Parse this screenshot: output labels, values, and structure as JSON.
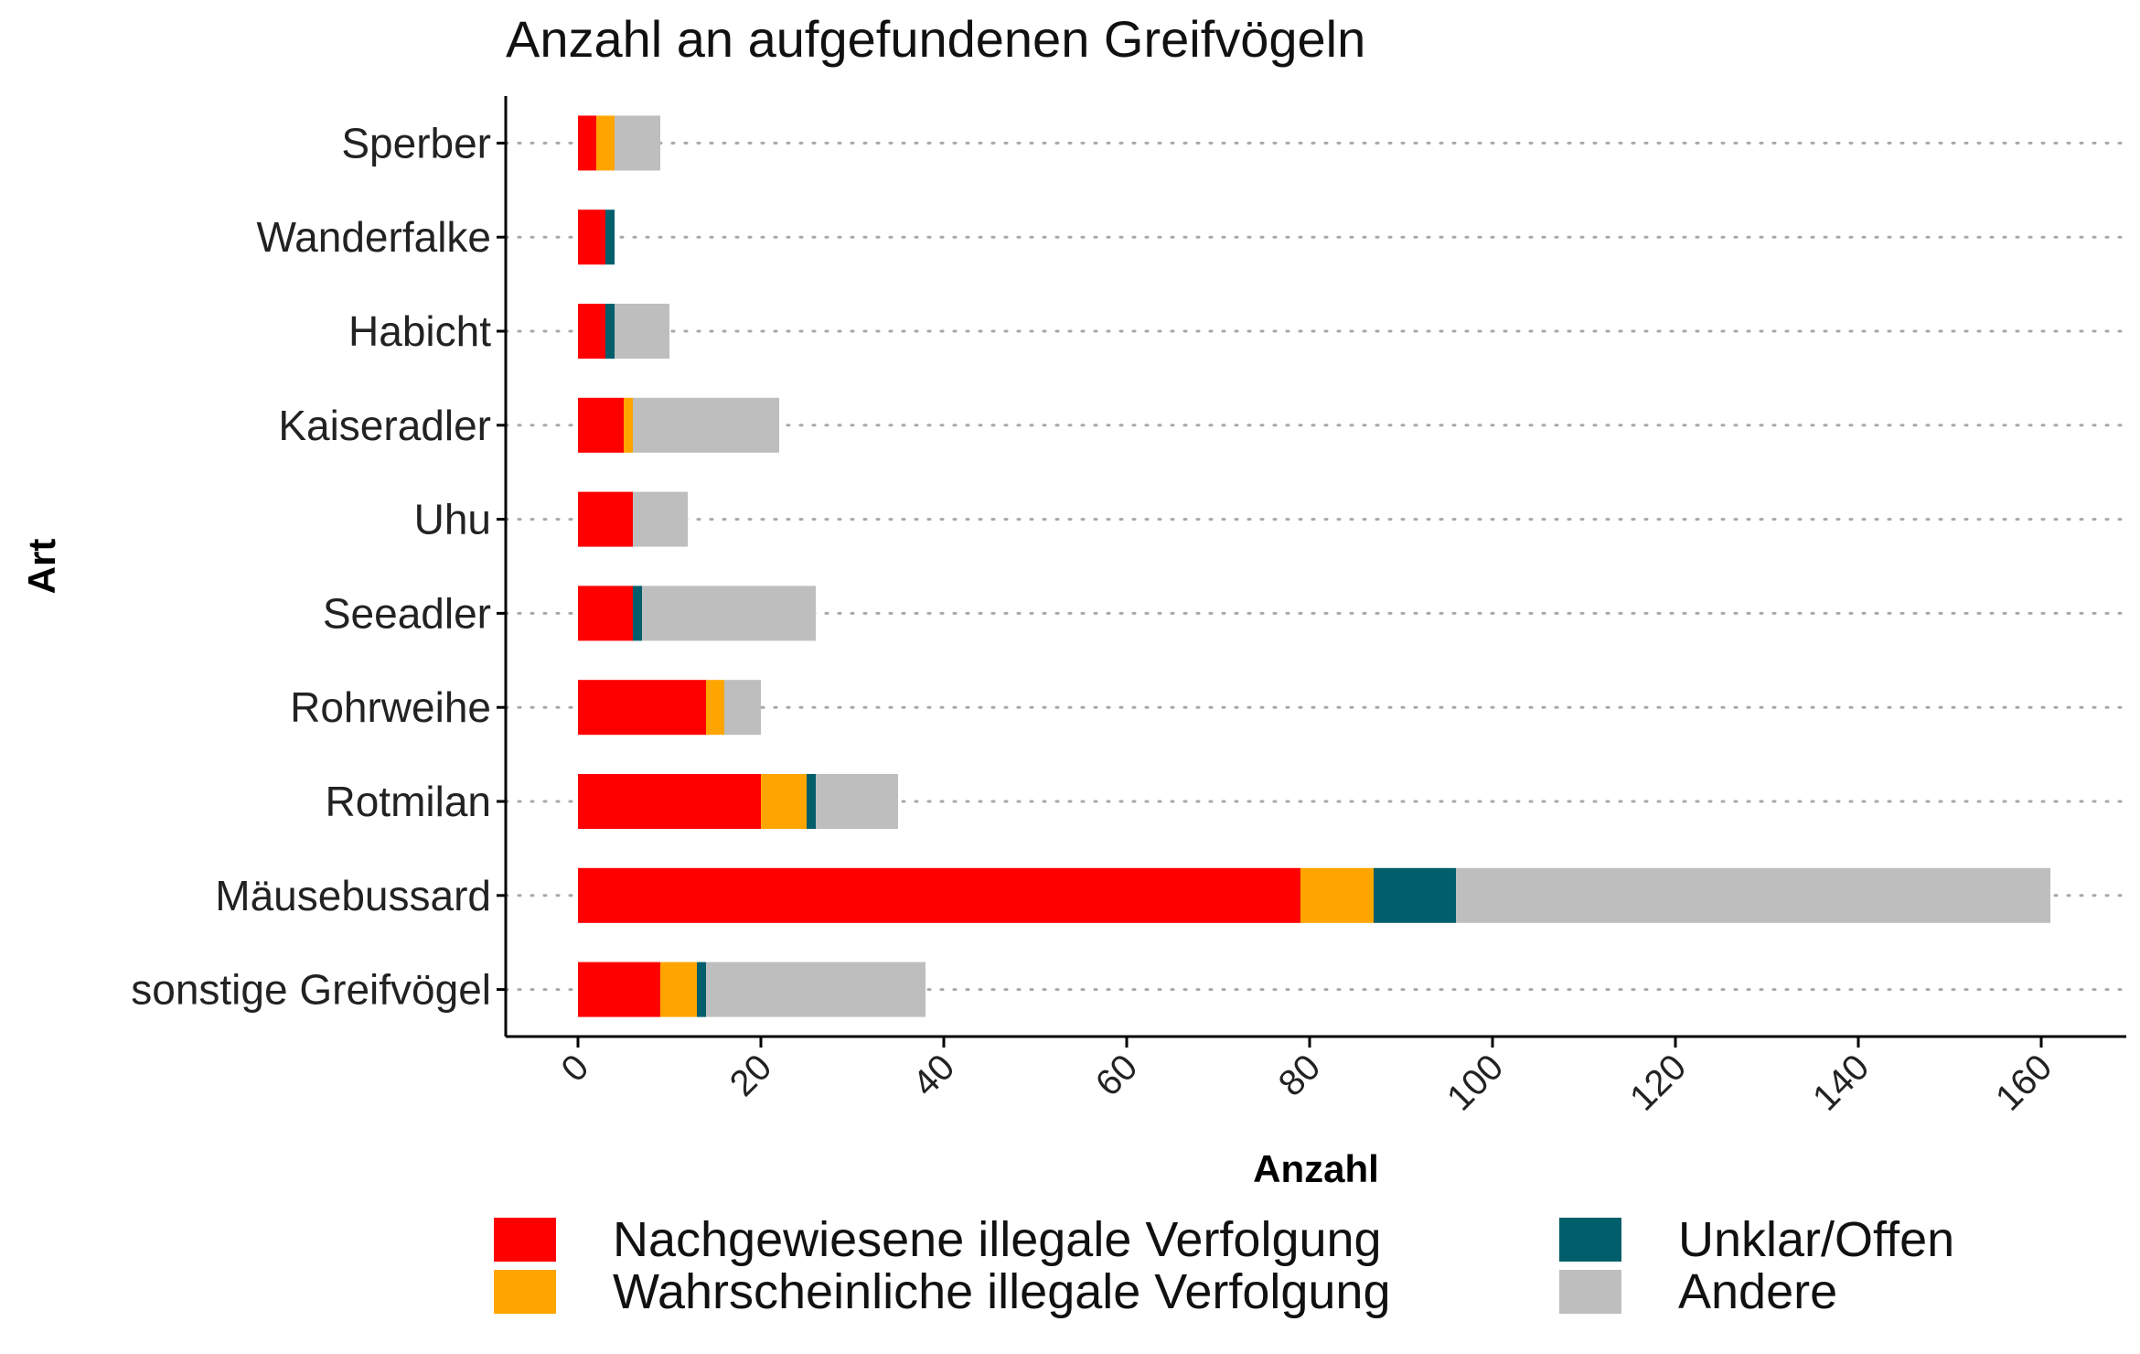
{
  "chart_data": {
    "type": "bar",
    "orientation": "horizontal",
    "stacked": true,
    "title": "Anzahl an aufgefundenen Greifvögeln",
    "xlabel": "Anzahl",
    "ylabel": "Art",
    "xlim": [
      -8,
      168
    ],
    "xticks": [
      0,
      20,
      40,
      60,
      80,
      100,
      120,
      140,
      160
    ],
    "grid": "horizontal dotted",
    "legend_position": "bottom",
    "categories": [
      "Sperber",
      "Wanderfalke",
      "Habicht",
      "Kaiseradler",
      "Uhu",
      "Seeadler",
      "Rohrweihe",
      "Rotmilan",
      "Mäusebussard",
      "sonstige Greifvögel"
    ],
    "series": [
      {
        "name": "Nachgewiesene illegale Verfolgung",
        "color": "#FF0000",
        "values": [
          2,
          3,
          3,
          5,
          6,
          6,
          14,
          20,
          79,
          9
        ]
      },
      {
        "name": "Wahrscheinliche illegale Verfolgung",
        "color": "#FFA500",
        "values": [
          2,
          0,
          0,
          1,
          0,
          0,
          2,
          5,
          8,
          4
        ]
      },
      {
        "name": "Unklar/Offen",
        "color": "#005F6B",
        "values": [
          0,
          1,
          1,
          0,
          0,
          1,
          0,
          1,
          9,
          1
        ]
      },
      {
        "name": "Andere",
        "color": "#BEBEBE",
        "values": [
          5,
          0,
          6,
          16,
          6,
          19,
          4,
          9,
          65,
          24
        ]
      }
    ]
  }
}
